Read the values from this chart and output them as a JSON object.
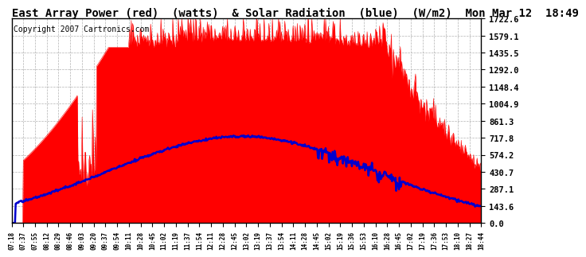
{
  "title": "East Array Power (red)  (watts)  & Solar Radiation  (blue)  (W/m2)  Mon Mar 12  18:49",
  "copyright": "Copyright 2007 Cartronics.com",
  "y_tick_values": [
    0.0,
    143.6,
    287.1,
    430.7,
    574.2,
    717.8,
    861.3,
    1004.9,
    1148.4,
    1292.0,
    1435.5,
    1579.1,
    1722.6
  ],
  "y_max": 1722.6,
  "y_min": 0.0,
  "x_labels": [
    "07:18",
    "07:37",
    "07:55",
    "08:12",
    "08:29",
    "08:46",
    "09:03",
    "09:20",
    "09:37",
    "09:54",
    "10:11",
    "10:28",
    "10:45",
    "11:02",
    "11:19",
    "11:37",
    "11:54",
    "12:11",
    "12:28",
    "12:45",
    "13:02",
    "13:19",
    "13:37",
    "13:54",
    "14:11",
    "14:28",
    "14:45",
    "15:02",
    "15:19",
    "15:36",
    "15:53",
    "16:10",
    "16:28",
    "16:45",
    "17:02",
    "17:19",
    "17:36",
    "17:53",
    "18:10",
    "18:27",
    "18:44"
  ],
  "background_color": "#ffffff",
  "red_color": "#ff0000",
  "blue_color": "#0000cc",
  "grid_color": "#aaaaaa",
  "title_fontsize": 10,
  "copyright_fontsize": 7
}
